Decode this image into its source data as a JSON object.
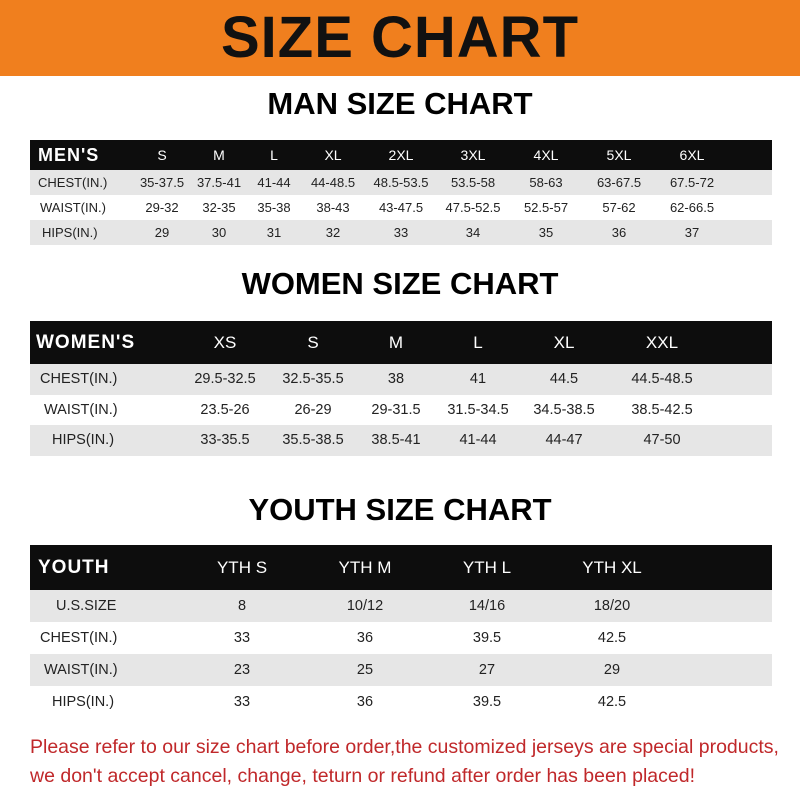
{
  "banner": {
    "title": "SIZE CHART",
    "color": "#f07f1e"
  },
  "men": {
    "title": "MAN SIZE CHART",
    "header": [
      "MEN'S",
      "S",
      "M",
      "L",
      "XL",
      "2XL",
      "3XL",
      "4XL",
      "5XL",
      "6XL"
    ],
    "rows": [
      [
        "CHEST(IN.)",
        "35-37.5",
        "37.5-41",
        "41-44",
        "44-48.5",
        "48.5-53.5",
        "53.5-58",
        "58-63",
        "63-67.5",
        "67.5-72"
      ],
      [
        "WAIST(IN.)",
        "29-32",
        "32-35",
        "35-38",
        "38-43",
        "43-47.5",
        "47.5-52.5",
        "52.5-57",
        "57-62",
        "62-66.5"
      ],
      [
        "HIPS(IN.)",
        "29",
        "30",
        "31",
        "32",
        "33",
        "34",
        "35",
        "36",
        "37"
      ]
    ]
  },
  "women": {
    "title": "WOMEN SIZE CHART",
    "header": [
      "WOMEN'S",
      "XS",
      "S",
      "M",
      "L",
      "XL",
      "XXL"
    ],
    "rows": [
      [
        "CHEST(IN.)",
        "29.5-32.5",
        "32.5-35.5",
        "38",
        "41",
        "44.5",
        "44.5-48.5"
      ],
      [
        "WAIST(IN.)",
        "23.5-26",
        "26-29",
        "29-31.5",
        "31.5-34.5",
        "34.5-38.5",
        "38.5-42.5"
      ],
      [
        "HIPS(IN.)",
        "33-35.5",
        "35.5-38.5",
        "38.5-41",
        "41-44",
        "44-47",
        "47-50"
      ]
    ]
  },
  "youth": {
    "title": "YOUTH SIZE CHART",
    "header": [
      "YOUTH",
      "YTH S",
      "YTH M",
      "YTH L",
      "YTH XL"
    ],
    "rows": [
      [
        "U.S.SIZE",
        "8",
        "10/12",
        "14/16",
        "18/20"
      ],
      [
        "CHEST(IN.)",
        "33",
        "36",
        "39.5",
        "42.5"
      ],
      [
        "WAIST(IN.)",
        "23",
        "25",
        "27",
        "29"
      ],
      [
        "HIPS(IN.)",
        "33",
        "36",
        "39.5",
        "42.5"
      ]
    ]
  },
  "notice": {
    "line1": "Please refer to our size chart before order,the customized jerseys are special products,",
    "line2": "we don't accept cancel, change, teturn or refund after order has been placed!",
    "color": "#c0282a"
  }
}
